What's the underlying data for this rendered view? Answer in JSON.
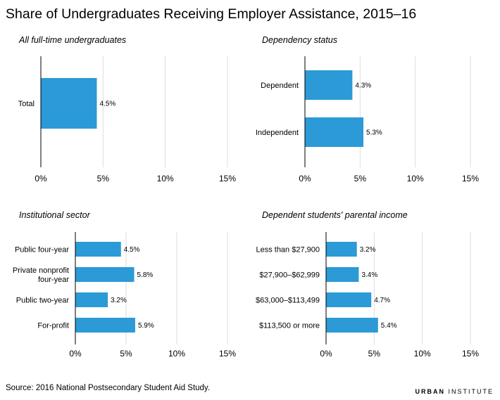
{
  "title": "Share of Undergraduates Receiving Employer Assistance, 2015–16",
  "source": "Source: 2016 National Postsecondary Student Aid Study.",
  "brand": {
    "part1": "URBAN",
    "part2": "INSTITUTE"
  },
  "colors": {
    "bar": "#2b9ad6",
    "grid": "#dddddd",
    "axis": "#000000"
  },
  "chart_data": [
    {
      "type": "bar",
      "orientation": "horizontal",
      "title": "All full-time undergraduates",
      "categories": [
        "Total"
      ],
      "values": [
        4.5
      ],
      "data_labels": [
        "4.5%"
      ],
      "ticks": [
        "0%",
        "5%",
        "10%",
        "15%"
      ],
      "xlim": [
        0,
        15
      ],
      "grid": true
    },
    {
      "type": "bar",
      "orientation": "horizontal",
      "title": "Dependency status",
      "categories": [
        "Dependent",
        "Independent"
      ],
      "values": [
        4.3,
        5.3
      ],
      "data_labels": [
        "4.3%",
        "5.3%"
      ],
      "ticks": [
        "0%",
        "5%",
        "10%",
        "15%"
      ],
      "xlim": [
        0,
        15
      ],
      "grid": true
    },
    {
      "type": "bar",
      "orientation": "horizontal",
      "title": "Institutional sector",
      "categories": [
        "Public four-year",
        "Private nonprofit four-year",
        "Public two-year",
        "For-profit"
      ],
      "category_lines": [
        [
          "Public four-year"
        ],
        [
          "Private nonprofit",
          "four-year"
        ],
        [
          "Public two-year"
        ],
        [
          "For-profit"
        ]
      ],
      "values": [
        4.5,
        5.8,
        3.2,
        5.9
      ],
      "data_labels": [
        "4.5%",
        "5.8%",
        "3.2%",
        "5.9%"
      ],
      "ticks": [
        "0%",
        "5%",
        "10%",
        "15%"
      ],
      "xlim": [
        0,
        15
      ],
      "grid": true
    },
    {
      "type": "bar",
      "orientation": "horizontal",
      "title": "Dependent students' parental income",
      "categories": [
        "Less than $27,900",
        "$27,900–$62,999",
        "$63,000–$113,499",
        "$113,500 or more"
      ],
      "values": [
        3.2,
        3.4,
        4.7,
        5.4
      ],
      "data_labels": [
        "3.2%",
        "3.4%",
        "4.7%",
        "5.4%"
      ],
      "ticks": [
        "0%",
        "5%",
        "10%",
        "15%"
      ],
      "xlim": [
        0,
        15
      ],
      "grid": true
    }
  ]
}
